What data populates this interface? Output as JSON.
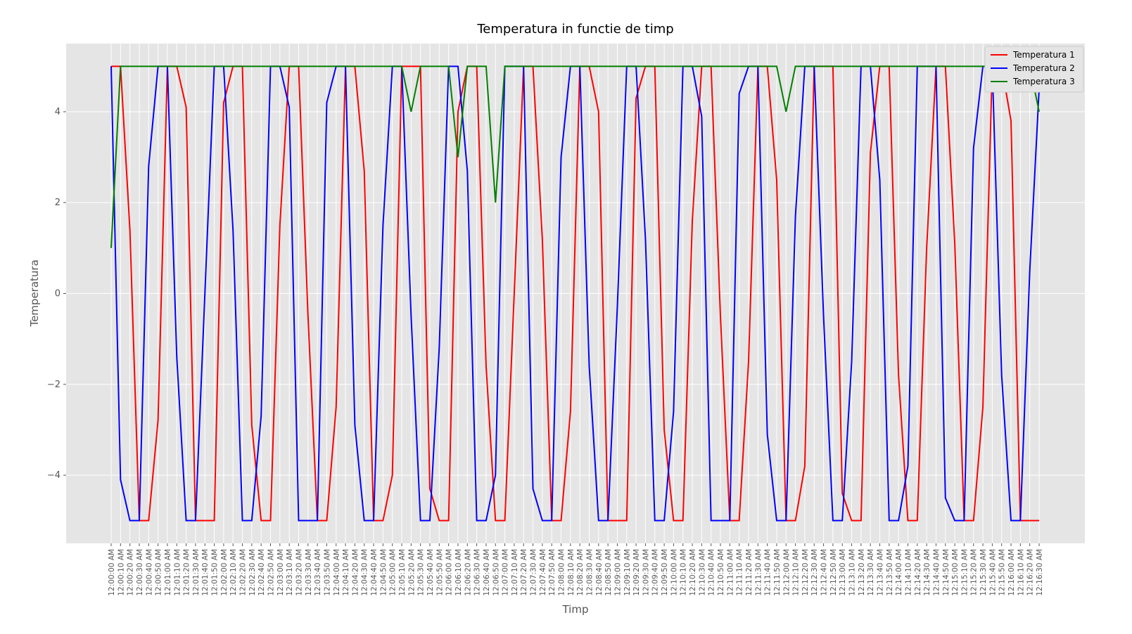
{
  "chart_data": {
    "type": "line",
    "title": "Temperatura in functie de timp",
    "x_label": "Timp",
    "y_label": "Temperatura",
    "categories": [
      "12:00:00 AM",
      "12:00:10 AM",
      "12:00:20 AM",
      "12:00:30 AM",
      "12:00:40 AM",
      "12:00:50 AM",
      "12:01:00 AM",
      "12:01:10 AM",
      "12:01:20 AM",
      "12:01:30 AM",
      "12:01:40 AM",
      "12:01:50 AM",
      "12:02:00 AM",
      "12:02:10 AM",
      "12:02:20 AM",
      "12:02:30 AM",
      "12:02:40 AM",
      "12:02:50 AM",
      "12:03:00 AM",
      "12:03:10 AM",
      "12:03:20 AM",
      "12:03:30 AM",
      "12:03:40 AM",
      "12:03:50 AM",
      "12:04:00 AM",
      "12:04:10 AM",
      "12:04:20 AM",
      "12:04:30 AM",
      "12:04:40 AM",
      "12:04:50 AM",
      "12:05:00 AM",
      "12:05:10 AM",
      "12:05:20 AM",
      "12:05:30 AM",
      "12:05:40 AM",
      "12:05:50 AM",
      "12:06:00 AM",
      "12:06:10 AM",
      "12:06:20 AM",
      "12:06:30 AM",
      "12:06:40 AM",
      "12:06:50 AM",
      "12:07:00 AM",
      "12:07:10 AM",
      "12:07:20 AM",
      "12:07:30 AM",
      "12:07:40 AM",
      "12:07:50 AM",
      "12:08:00 AM",
      "12:08:10 AM",
      "12:08:20 AM",
      "12:08:30 AM",
      "12:08:40 AM",
      "12:08:50 AM",
      "12:09:00 AM",
      "12:09:10 AM",
      "12:09:20 AM",
      "12:09:30 AM",
      "12:09:40 AM",
      "12:09:50 AM",
      "12:10:00 AM",
      "12:10:10 AM",
      "12:10:20 AM",
      "12:10:30 AM",
      "12:10:40 AM",
      "12:10:50 AM",
      "12:11:00 AM",
      "12:11:10 AM",
      "12:11:20 AM",
      "12:11:30 AM",
      "12:11:40 AM",
      "12:11:50 AM",
      "12:12:00 AM",
      "12:12:10 AM",
      "12:12:20 AM",
      "12:12:30 AM",
      "12:12:40 AM",
      "12:12:50 AM",
      "12:13:00 AM",
      "12:13:10 AM",
      "12:13:20 AM",
      "12:13:30 AM",
      "12:13:40 AM",
      "12:13:50 AM",
      "12:14:00 AM",
      "12:14:10 AM",
      "12:14:20 AM",
      "12:14:30 AM",
      "12:14:40 AM",
      "12:14:50 AM",
      "12:15:00 AM",
      "12:15:10 AM",
      "12:15:20 AM",
      "12:15:30 AM",
      "12:15:40 AM",
      "12:15:50 AM",
      "12:16:00 AM",
      "12:16:10 AM",
      "12:16:20 AM",
      "12:16:30 AM"
    ],
    "series": [
      {
        "name": "Temperatura 1",
        "color": "#ff0000",
        "values": [
          5,
          5,
          1.4,
          -5,
          -5,
          -2.8,
          5,
          5,
          4.1,
          -5,
          -5,
          -5,
          4.2,
          5,
          5,
          -2.9,
          -5,
          -5,
          1.5,
          5,
          5,
          -0.5,
          -5,
          -5,
          -2.5,
          5,
          5,
          2.7,
          -5,
          -5,
          -4,
          5,
          5,
          5,
          -4.3,
          -5,
          -5,
          4,
          5,
          5,
          -1.6,
          -5,
          -5,
          0,
          5,
          5,
          1.2,
          -5,
          -5,
          -2.6,
          5,
          5,
          4,
          -5,
          -5,
          -5,
          4.3,
          5,
          5,
          -3,
          -5,
          -5,
          1.6,
          5,
          5,
          -0.5,
          -5,
          -5,
          -1.5,
          5,
          5,
          2.5,
          -5,
          -5,
          -3.8,
          5,
          5,
          5,
          -4.4,
          -5,
          -5,
          3.1,
          5,
          5,
          -1.8,
          -5,
          -5,
          1,
          5,
          5,
          1.1,
          -5,
          -5,
          -2.5,
          5,
          5,
          3.8,
          -5,
          -5,
          -5
        ]
      },
      {
        "name": "Temperatura 2",
        "color": "#0000ff",
        "values": [
          5,
          -4.1,
          -5,
          -5,
          2.8,
          5,
          5,
          -1.4,
          -5,
          -5,
          0,
          5,
          5,
          1.4,
          -5,
          -5,
          -2.7,
          5,
          5,
          4.1,
          -5,
          -5,
          -5,
          4.2,
          5,
          5,
          -2.9,
          -5,
          -5,
          1.5,
          5,
          5,
          -0.5,
          -5,
          -5,
          -1.2,
          5,
          5,
          2.7,
          -5,
          -5,
          -4,
          5,
          5,
          5,
          -4.3,
          -5,
          -5,
          3,
          5,
          5,
          -1.6,
          -5,
          -5,
          -0.3,
          5,
          5,
          1.2,
          -5,
          -5,
          -2.6,
          5,
          5,
          3.9,
          -5,
          -5,
          -5,
          4.4,
          5,
          5,
          -3.1,
          -5,
          -5,
          1.7,
          5,
          5,
          -0.5,
          -5,
          -5,
          -1.5,
          5,
          5,
          2.5,
          -5,
          -5,
          -3.8,
          5,
          5,
          5,
          -4.5,
          -5,
          -5,
          3.2,
          5,
          5,
          -1.8,
          -5,
          -5,
          0.5,
          4.5
        ]
      },
      {
        "name": "Temperatura 3",
        "color": "#008000",
        "values": [
          1,
          5,
          5,
          5,
          5,
          5,
          5,
          5,
          5,
          5,
          5,
          5,
          5,
          5,
          5,
          5,
          5,
          5,
          5,
          5,
          5,
          5,
          5,
          5,
          5,
          5,
          5,
          5,
          5,
          5,
          5,
          5,
          4,
          5,
          5,
          5,
          5,
          3,
          5,
          5,
          5,
          2,
          5,
          5,
          5,
          5,
          5,
          5,
          5,
          5,
          5,
          5,
          5,
          5,
          5,
          5,
          5,
          5,
          5,
          5,
          5,
          5,
          5,
          5,
          5,
          5,
          5,
          5,
          5,
          5,
          5,
          5,
          4,
          5,
          5,
          5,
          5,
          5,
          5,
          5,
          5,
          5,
          5,
          5,
          5,
          5,
          5,
          5,
          5,
          5,
          5,
          5,
          5,
          5,
          5,
          5,
          5,
          5,
          5,
          4
        ]
      }
    ],
    "ylim": [
      -5.5,
      5.5
    ],
    "yticks": [
      {
        "value": -4,
        "label": "−4"
      },
      {
        "value": -2,
        "label": "−2"
      },
      0,
      2,
      4
    ],
    "grid": true,
    "legend": "upper right"
  }
}
